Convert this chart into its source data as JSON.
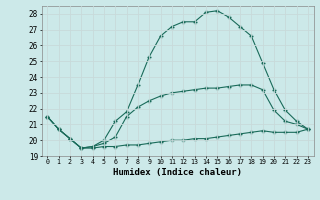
{
  "xlabel": "Humidex (Indice chaleur)",
  "bg_color": "#cce9e9",
  "grid_color": "#c8dada",
  "line_color": "#1a6b5a",
  "ylim": [
    19,
    28.5
  ],
  "xlim": [
    -0.5,
    23.5
  ],
  "yticks": [
    19,
    20,
    21,
    22,
    23,
    24,
    25,
    26,
    27,
    28
  ],
  "xticks": [
    0,
    1,
    2,
    3,
    4,
    5,
    6,
    7,
    8,
    9,
    10,
    11,
    12,
    13,
    14,
    15,
    16,
    17,
    18,
    19,
    20,
    21,
    22,
    23
  ],
  "line1_x": [
    0,
    1,
    2,
    3,
    4,
    5,
    6,
    7,
    8,
    9,
    10,
    11,
    12,
    13,
    14,
    15,
    16,
    17,
    18,
    19,
    20,
    21,
    22,
    23
  ],
  "line1_y": [
    21.5,
    20.7,
    20.1,
    19.5,
    19.5,
    19.6,
    19.6,
    19.7,
    19.7,
    19.8,
    19.9,
    20.0,
    20.0,
    20.1,
    20.1,
    20.2,
    20.3,
    20.4,
    20.5,
    20.6,
    20.5,
    20.5,
    20.5,
    20.7
  ],
  "line2_x": [
    0,
    1,
    2,
    3,
    4,
    5,
    6,
    7,
    8,
    9,
    10,
    11,
    12,
    13,
    14,
    15,
    16,
    17,
    18,
    19,
    20,
    21,
    22,
    23
  ],
  "line2_y": [
    21.5,
    20.7,
    20.1,
    19.5,
    19.6,
    19.8,
    20.2,
    21.5,
    22.1,
    22.5,
    22.8,
    23.0,
    23.1,
    23.2,
    23.3,
    23.3,
    23.4,
    23.5,
    23.5,
    23.2,
    21.9,
    21.2,
    21.0,
    20.7
  ],
  "line3_x": [
    0,
    1,
    2,
    3,
    4,
    5,
    6,
    7,
    8,
    9,
    10,
    11,
    12,
    13,
    14,
    15,
    16,
    17,
    18,
    19,
    20,
    21,
    22,
    23
  ],
  "line3_y": [
    21.5,
    20.7,
    20.1,
    19.5,
    19.6,
    20.0,
    21.2,
    21.8,
    23.5,
    25.3,
    26.6,
    27.2,
    27.5,
    27.5,
    28.1,
    28.2,
    27.8,
    27.2,
    26.6,
    24.9,
    23.2,
    21.9,
    21.2,
    20.7
  ]
}
